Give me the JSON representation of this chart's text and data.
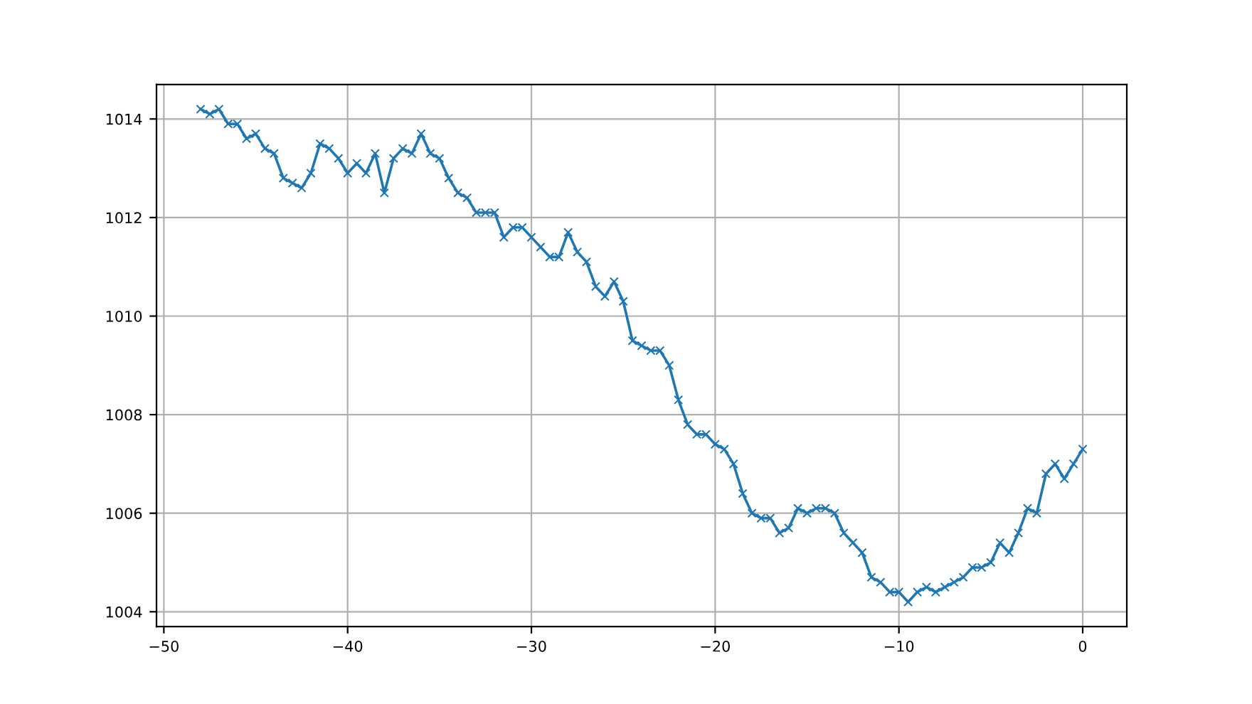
{
  "chart_data": {
    "type": "line",
    "x": [
      -48,
      -47.5,
      -47,
      -46.5,
      -46,
      -45.5,
      -45,
      -44.5,
      -44,
      -43.5,
      -43,
      -42.5,
      -42,
      -41.5,
      -41,
      -40.5,
      -40,
      -39.5,
      -39,
      -38.5,
      -38,
      -37.5,
      -37,
      -36.5,
      -36,
      -35.5,
      -35,
      -34.5,
      -34,
      -33.5,
      -33,
      -32.5,
      -32,
      -31.5,
      -31,
      -30.5,
      -30,
      -29.5,
      -29,
      -28.5,
      -28,
      -27.5,
      -27,
      -26.5,
      -26,
      -25.5,
      -25,
      -24.5,
      -24,
      -23.5,
      -23,
      -22.5,
      -22,
      -21.5,
      -21,
      -20.5,
      -20,
      -19.5,
      -19,
      -18.5,
      -18,
      -17.5,
      -17,
      -16.5,
      -16,
      -15.5,
      -15,
      -14.5,
      -14,
      -13.5,
      -13,
      -12.5,
      -12,
      -11.5,
      -11,
      -10.5,
      -10,
      -9.5,
      -9,
      -8.5,
      -8,
      -7.5,
      -7,
      -6.5,
      -6,
      -5.5,
      -5,
      -4.5,
      -4,
      -3.5,
      -3,
      -2.5,
      -2,
      -1.5,
      -1,
      -0.5,
      0
    ],
    "series": [
      {
        "color": "#1f77b4",
        "values": [
          1014.2,
          1014.1,
          1014.2,
          1013.9,
          1013.9,
          1013.6,
          1013.7,
          1013.4,
          1013.3,
          1012.8,
          1012.7,
          1012.6,
          1012.9,
          1013.5,
          1013.4,
          1013.2,
          1012.9,
          1013.1,
          1012.9,
          1013.3,
          1012.5,
          1013.2,
          1013.4,
          1013.3,
          1013.7,
          1013.3,
          1013.2,
          1012.8,
          1012.5,
          1012.4,
          1012.1,
          1012.1,
          1012.1,
          1011.6,
          1011.8,
          1011.8,
          1011.6,
          1011.4,
          1011.2,
          1011.2,
          1011.7,
          1011.3,
          1011.1,
          1010.6,
          1010.4,
          1010.7,
          1010.3,
          1009.5,
          1009.4,
          1009.3,
          1009.3,
          1009.0,
          1008.3,
          1007.8,
          1007.6,
          1007.6,
          1007.4,
          1007.3,
          1007.0,
          1006.4,
          1006.0,
          1005.9,
          1005.9,
          1005.6,
          1005.7,
          1006.1,
          1006.0,
          1006.1,
          1006.1,
          1006.0,
          1005.6,
          1005.4,
          1005.2,
          1004.7,
          1004.6,
          1004.4,
          1004.4,
          1004.2,
          1004.4,
          1004.5,
          1004.4,
          1004.5,
          1004.6,
          1004.7,
          1004.9,
          1004.9,
          1005.0,
          1005.4,
          1005.2,
          1005.6,
          1006.1,
          1006.0,
          1006.8,
          1007.0,
          1006.7,
          1007.0,
          1007.3
        ]
      }
    ],
    "xlim": [
      -50.4,
      2.4
    ],
    "ylim": [
      1003.7,
      1014.7
    ],
    "xticks": [
      {
        "value": -50,
        "label": "−50"
      },
      {
        "value": -40,
        "label": "−40"
      },
      {
        "value": -30,
        "label": "−30"
      },
      {
        "value": -20,
        "label": "−20"
      },
      {
        "value": -10,
        "label": "−10"
      },
      0
    ],
    "yticks": [
      1004,
      1006,
      1008,
      1010,
      1012,
      1014
    ],
    "grid": true,
    "marker": "cross",
    "line_style": "solid"
  }
}
